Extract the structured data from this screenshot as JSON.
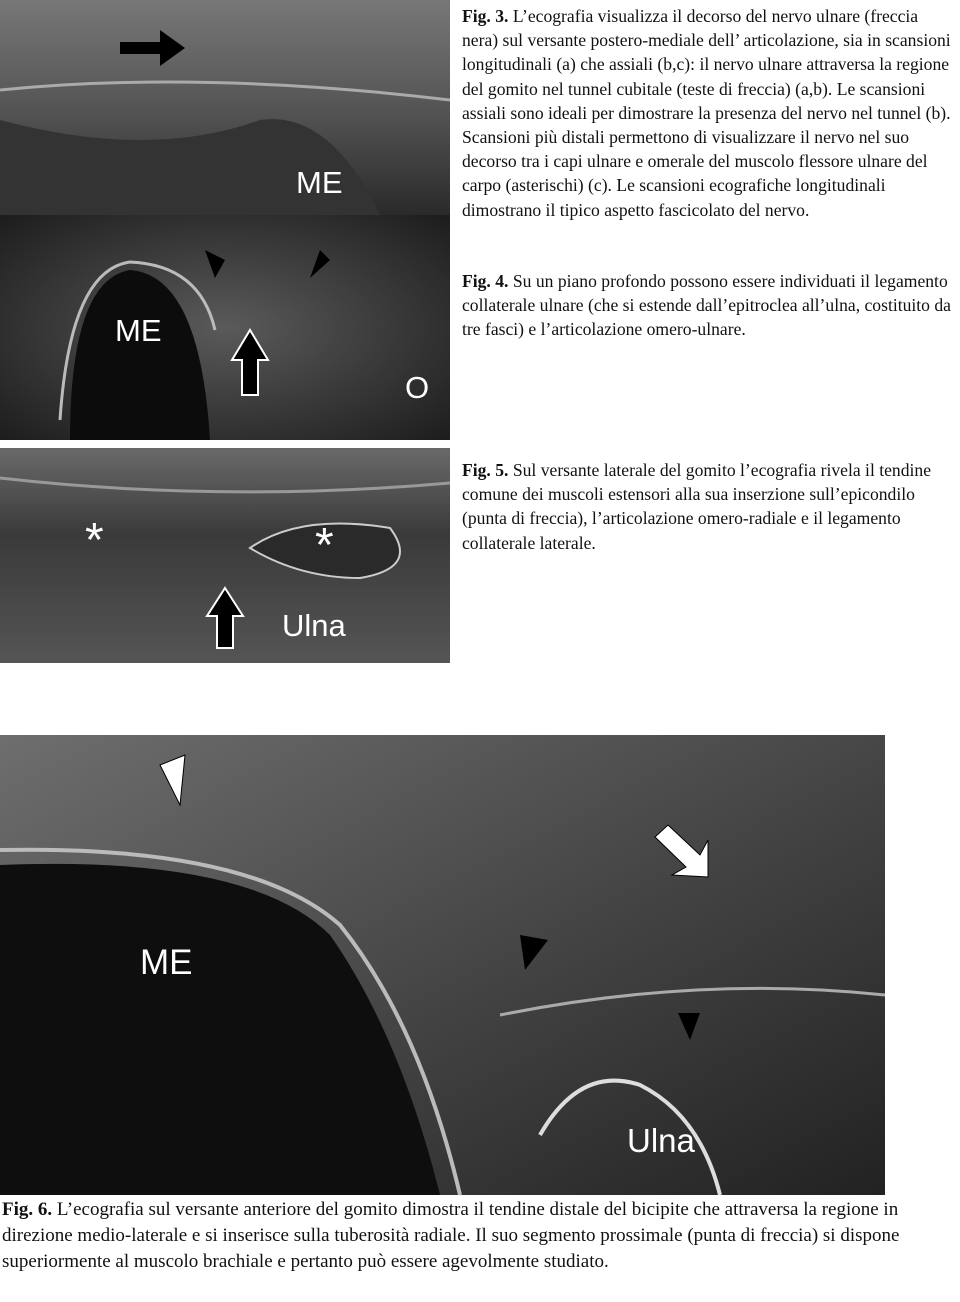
{
  "figures": [
    {
      "labels": [
        "ME",
        "ME",
        "O"
      ]
    },
    {
      "labels": [
        "*",
        "*",
        "Ulna"
      ]
    },
    {
      "labels": [
        "ME",
        "Ulna"
      ]
    }
  ],
  "captions": [
    {
      "label": "Fig. 3.",
      "text": "L’ecografia visualizza il decorso del nervo ulnare (freccia nera) sul versante postero-mediale dell’ articolazione, sia in scansioni longitudinali (a) che assiali (b,c): il nervo ulnare attraversa la regione del gomito nel tunnel cubitale (teste di freccia) (a,b). Le scansioni assiali sono ideali per dimostrare la presenza del nervo nel tunnel (b). Scansioni più distali permettono di visualizzare il nervo nel suo decorso tra i capi ulnare e omerale del muscolo flessore ulnare del carpo (asterischi) (c). Le scansioni ecografiche longitudinali dimostrano il tipico aspetto fascicolato del nervo."
    },
    {
      "label": "Fig. 4.",
      "text": "Su un piano profondo possono essere individuati il legamento collaterale ulnare (che si estende dall’epitroclea all’ulna, costituito da tre fasci) e l’articolazione omero-ulnare."
    },
    {
      "label": "Fig. 5.",
      "text": "Sul versante laterale del gomito l’ecografia rivela il tendine comune dei muscoli estensori alla sua inserzione sull’epicondilo (punta di freccia), l’articolazione omero-radiale e il legamento collaterale laterale."
    },
    {
      "label": "Fig. 6.",
      "text": "L’ecografia sul versante anteriore del gomito dimostra il tendine distale del bicipite che attraversa la regione in direzione medio-laterale e si inserisce sulla tuberosità radiale. Il suo segmento prossimale (punta di freccia) si dispone superiormente al muscolo brachiale e pertanto può essere agevolmente studiato."
    }
  ]
}
